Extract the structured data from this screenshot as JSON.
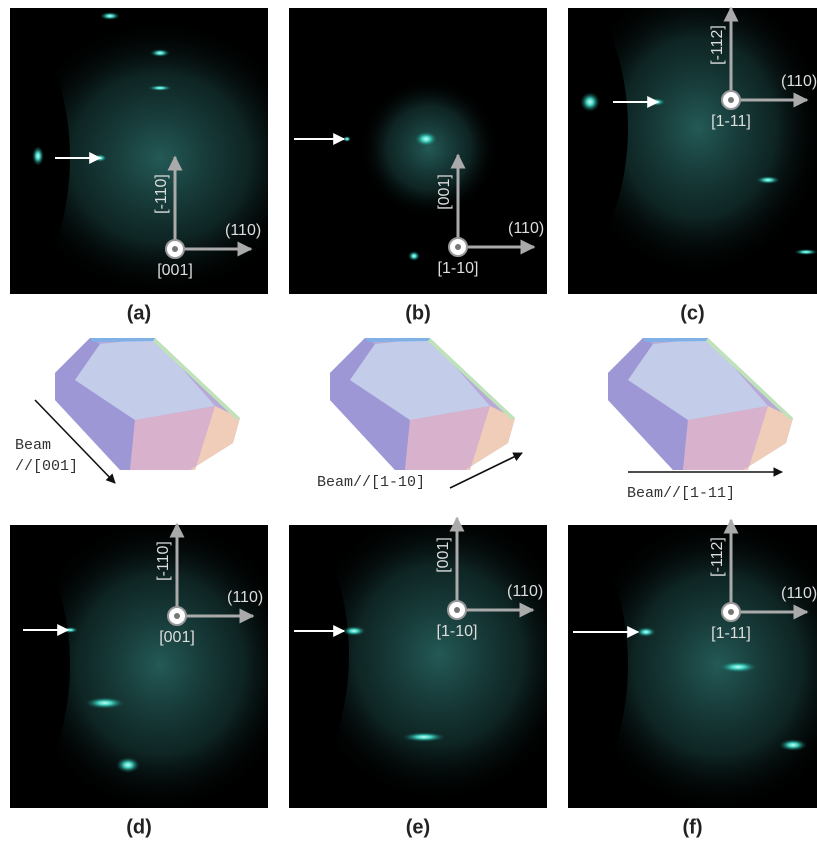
{
  "panels": [
    {
      "label": "(a)",
      "up": "[-110]",
      "right": "(110)",
      "normal": "[001]"
    },
    {
      "label": "(b)",
      "up": "[001]",
      "right": "(110)",
      "normal": "[1-10]"
    },
    {
      "label": "(c)",
      "up": "[-112]",
      "right": "(110)",
      "normal": "[1-11]"
    },
    {
      "label": "(d)",
      "up": "[-110]",
      "right": "(110)",
      "normal": "[001]"
    },
    {
      "label": "(e)",
      "up": "[001]",
      "right": "(110)",
      "normal": "[1-10]"
    },
    {
      "label": "(f)",
      "up": "[-112]",
      "right": "(110)",
      "normal": "[1-11]"
    }
  ],
  "crystals": [
    {
      "beam": [
        "Beam",
        "//[001]"
      ]
    },
    {
      "beam": [
        "Beam//[1-10]"
      ]
    },
    {
      "beam": [
        "Beam//[1-11]"
      ]
    }
  ]
}
